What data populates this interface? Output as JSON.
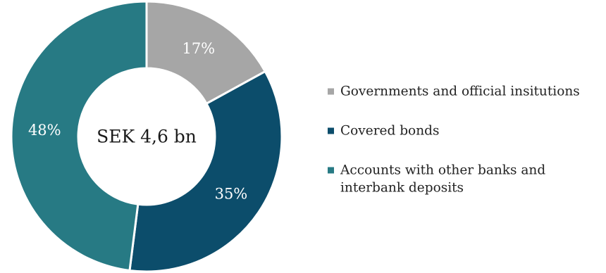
{
  "chart_data": {
    "type": "pie",
    "variant": "donut",
    "center_label": "SEK 4,6 bn",
    "categories": [
      "Governments and official insitutions",
      "Covered bonds",
      "Accounts with other banks and interbank deposits"
    ],
    "values": [
      17,
      35,
      48
    ],
    "value_labels": [
      "17%",
      "35%",
      "48%"
    ],
    "colors": [
      "#a6a6a6",
      "#0c4d6b",
      "#277a84"
    ],
    "legend": {
      "placement": "right",
      "entries": [
        {
          "lines": [
            "Governments and official insitutions"
          ]
        },
        {
          "lines": [
            "Covered bonds"
          ]
        },
        {
          "lines": [
            "Accounts with other banks and",
            "interbank deposits"
          ]
        }
      ]
    }
  }
}
